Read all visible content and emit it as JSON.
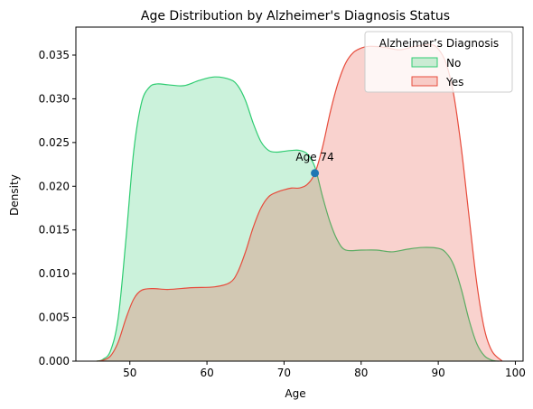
{
  "chart_data": {
    "type": "area",
    "title": "Age Distribution by Alzheimer's Diagnosis Status",
    "xlabel": "Age",
    "ylabel": "Density",
    "xlim": [
      43,
      101
    ],
    "ylim": [
      0,
      0.0382
    ],
    "xticks": [
      50,
      60,
      70,
      80,
      90,
      100
    ],
    "yticks": [
      0.0,
      0.005,
      0.01,
      0.015,
      0.02,
      0.025,
      0.03,
      0.035
    ],
    "ytick_labels": [
      "0.000",
      "0.005",
      "0.010",
      "0.015",
      "0.020",
      "0.025",
      "0.030",
      "0.035"
    ],
    "grid": false,
    "legend": {
      "title": "Alzheimer’s Diagnosis",
      "placement": "top-right"
    },
    "series": [
      {
        "name": "No",
        "stroke": "#2ecc71",
        "fill": "#2ecc71",
        "fill_opacity": 0.25,
        "x": [
          45.7,
          46.5,
          47.5,
          48.5,
          49.5,
          50.5,
          51.5,
          52.5,
          53.5,
          55,
          57,
          59,
          61,
          63,
          64,
          65,
          66,
          67,
          68,
          69,
          70,
          71,
          72,
          73,
          74,
          75,
          76,
          77,
          78,
          80,
          82,
          84,
          86,
          88,
          90,
          91,
          92,
          93,
          94,
          95,
          96,
          97,
          97.8
        ],
        "y": [
          0.0,
          0.0002,
          0.0012,
          0.005,
          0.014,
          0.024,
          0.0295,
          0.0313,
          0.0317,
          0.0316,
          0.0315,
          0.0321,
          0.0325,
          0.0322,
          0.0315,
          0.0298,
          0.0272,
          0.0251,
          0.0241,
          0.0239,
          0.024,
          0.0241,
          0.0241,
          0.0237,
          0.0222,
          0.0188,
          0.0158,
          0.0137,
          0.0127,
          0.0127,
          0.0127,
          0.0125,
          0.0128,
          0.013,
          0.0129,
          0.0124,
          0.011,
          0.0082,
          0.0047,
          0.002,
          0.0006,
          0.0001,
          0.0
        ]
      },
      {
        "name": "Yes",
        "stroke": "#e74c3c",
        "fill": "#e74c3c",
        "fill_opacity": 0.25,
        "x": [
          45.7,
          46.5,
          47.5,
          48.5,
          49.5,
          50.5,
          51.5,
          53,
          55,
          58,
          61,
          63,
          64,
          65,
          66,
          67,
          68,
          69,
          70,
          71,
          72,
          73,
          74,
          75,
          76,
          77,
          78,
          79,
          80,
          81,
          83,
          85,
          87,
          89,
          90,
          91,
          92,
          93,
          94,
          95,
          96,
          97,
          98.3
        ],
        "y": [
          0.0,
          0.0001,
          0.0006,
          0.0022,
          0.0049,
          0.0071,
          0.0081,
          0.0083,
          0.0082,
          0.0084,
          0.0085,
          0.009,
          0.0102,
          0.0125,
          0.0153,
          0.0175,
          0.0188,
          0.0193,
          0.0196,
          0.0198,
          0.0198,
          0.0202,
          0.0215,
          0.0245,
          0.0285,
          0.0318,
          0.0341,
          0.0353,
          0.0358,
          0.036,
          0.0359,
          0.0356,
          0.036,
          0.0362,
          0.0357,
          0.0341,
          0.0305,
          0.0243,
          0.0165,
          0.0089,
          0.0036,
          0.0011,
          0.0
        ]
      }
    ],
    "annotations": [
      {
        "text": "Age 74",
        "x": 74,
        "y": 0.0215,
        "marker_color": "#1f77b4"
      }
    ]
  }
}
